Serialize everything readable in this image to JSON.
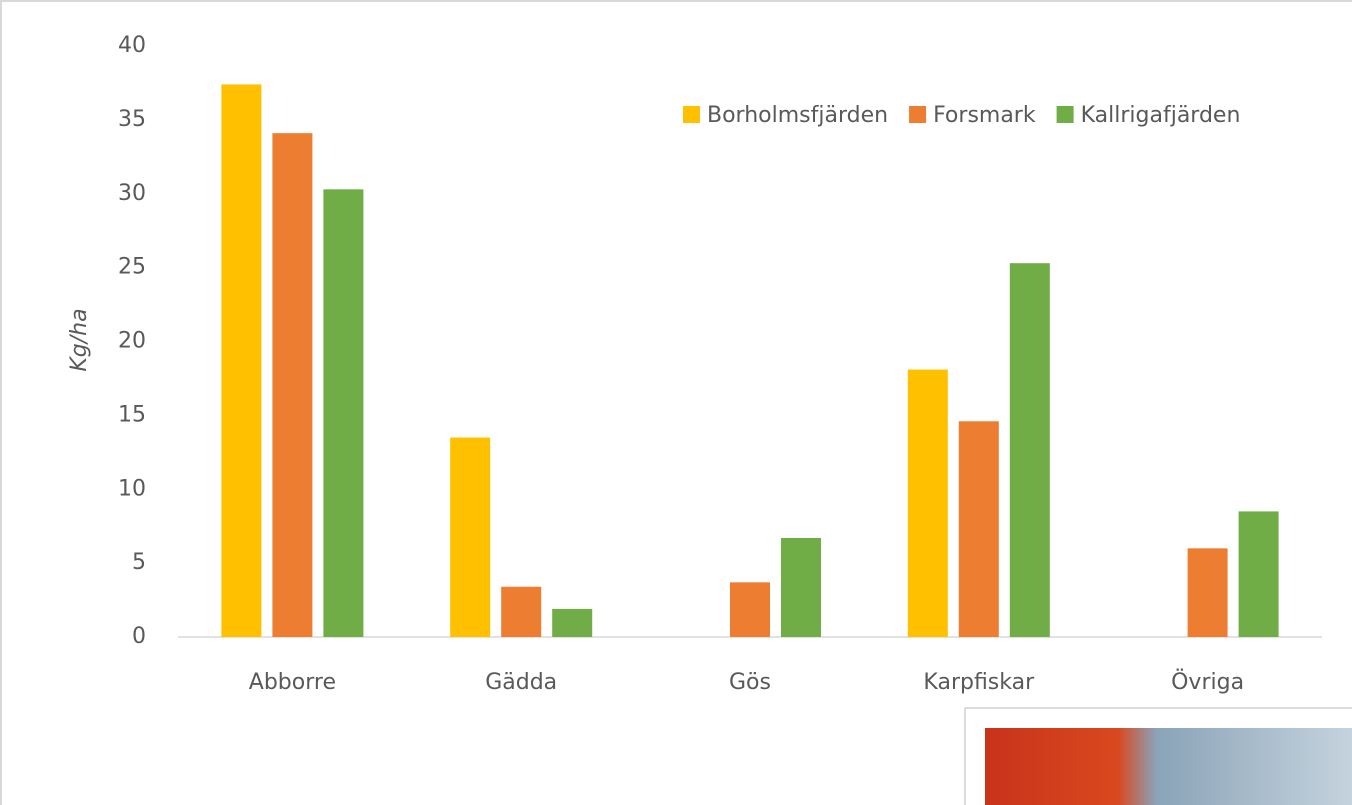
{
  "chart_data": {
    "type": "bar",
    "y_label": "Kg/ha",
    "categories": [
      "Abborre",
      "Gädda",
      "Gös",
      "Karpfiskar",
      "Övriga"
    ],
    "series": [
      {
        "name": "Borholmsfjärden",
        "color": "#FFC000",
        "values": [
          37.4,
          13.5,
          null,
          18.1,
          null
        ]
      },
      {
        "name": "Forsmark",
        "color": "#ED7D31",
        "values": [
          34.1,
          3.4,
          3.7,
          14.6,
          6.0
        ]
      },
      {
        "name": "Kallrigafjärden",
        "color": "#70AD47",
        "values": [
          30.3,
          1.9,
          6.7,
          25.3,
          8.5
        ]
      }
    ],
    "ylim": [
      0,
      40
    ],
    "yticks": [
      0,
      5,
      10,
      15,
      20,
      25,
      30,
      35,
      40
    ],
    "grid": false,
    "legend": "top-right"
  }
}
